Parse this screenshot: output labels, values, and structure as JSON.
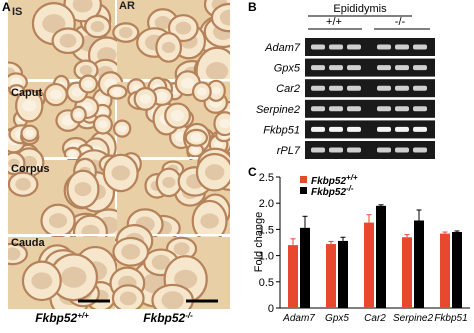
{
  "panel_a": {
    "label": "A",
    "column_labels": [
      "IS",
      "AR"
    ],
    "row_labels": [
      "Caput",
      "Corpus",
      "Cauda"
    ],
    "genotypes": [
      "Fkbp52+/+",
      "Fkbp52-/-"
    ]
  },
  "panel_b": {
    "label": "B",
    "tissue": "Epididymis",
    "genotypes": [
      "+/+",
      "-/-"
    ],
    "genes": [
      "Adam7",
      "Gpx5",
      "Car2",
      "Serpine2",
      "Fkbp51",
      "rPL7"
    ]
  },
  "chart_data": {
    "type": "bar",
    "label": "C",
    "ylabel": "Fold change",
    "categories": [
      "Adam7",
      "Gpx5",
      "Car2",
      "Serpine2",
      "Fkbp51"
    ],
    "series": [
      {
        "name": "Fkbp52+/+",
        "color": "#e8482e",
        "values": [
          1.2,
          1.22,
          1.63,
          1.35,
          1.42
        ],
        "errors": [
          0.12,
          0.05,
          0.15,
          0.05,
          0.03
        ]
      },
      {
        "name": "Fkbp52-/-",
        "color": "#000000",
        "values": [
          1.53,
          1.28,
          1.95,
          1.67,
          1.45
        ],
        "errors": [
          0.22,
          0.07,
          0.02,
          0.2,
          0.02
        ]
      }
    ],
    "ylim": [
      0,
      2.5
    ],
    "yticks": [
      0,
      0.5,
      {
        "value": 1,
        "label": "1.0"
      },
      1.5,
      {
        "value": 2,
        "label": "2.0"
      },
      2.5
    ]
  }
}
